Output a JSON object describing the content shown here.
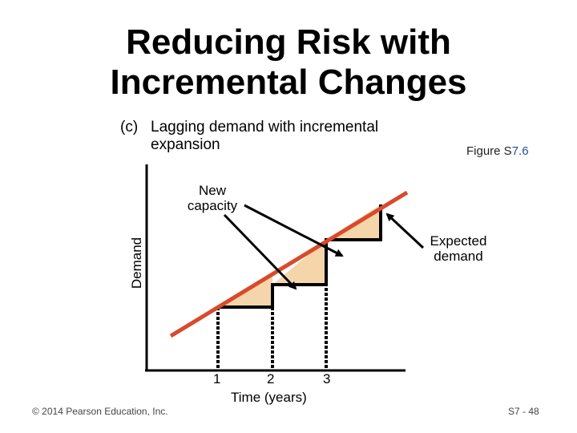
{
  "title": {
    "line1": "Reducing Risk with",
    "line2": "Incremental Changes"
  },
  "subtitle": {
    "prefix": "(c)",
    "line1": "Lagging demand with incremental",
    "line2": "expansion"
  },
  "figure_ref": {
    "label": "Figure S",
    "number": "7.6"
  },
  "labels": {
    "new_capacity": "New capacity",
    "expected_demand": "Expected demand",
    "demand_axis": "Demand"
  },
  "x_axis": {
    "ticks": [
      "1",
      "2",
      "3"
    ],
    "label": "Time (years)"
  },
  "footer": {
    "copyright": "© 2014 Pearson Education, Inc.",
    "slide": "S7 - 48"
  },
  "colors": {
    "demand_line": "#d94a2c",
    "shortfall_fill": "#f5d5aa",
    "axis": "#000000"
  }
}
